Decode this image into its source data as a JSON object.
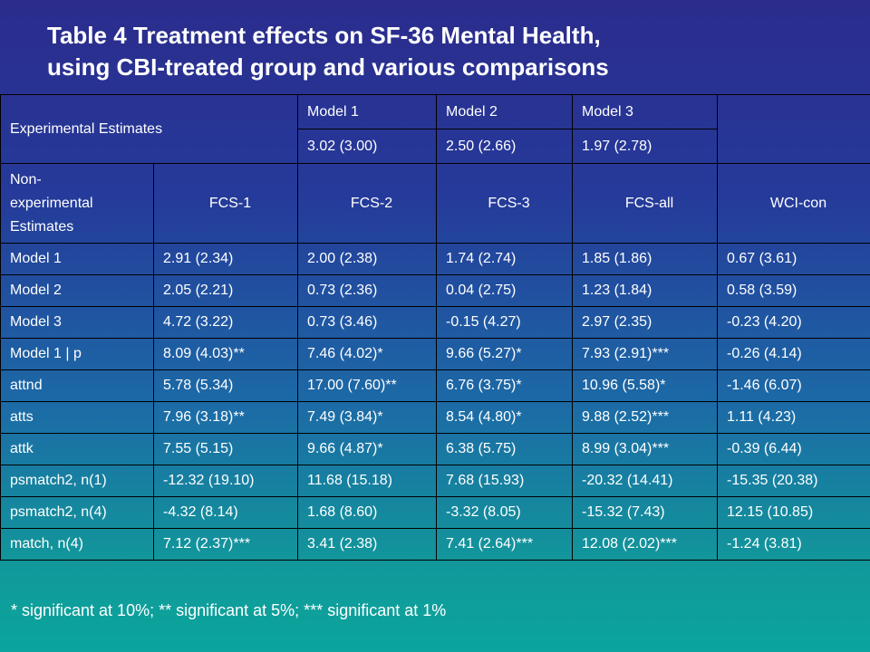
{
  "title": {
    "line1": "Table 4 Treatment effects on SF-36 Mental Health,",
    "line2": "using CBI-treated group and various comparisons"
  },
  "experimental": {
    "label": "Experimental Estimates",
    "models": [
      "Model 1",
      "Model 2",
      "Model 3"
    ],
    "values": [
      "3.02 (3.00)",
      "2.50 (2.66)",
      "1.97 (2.78)"
    ]
  },
  "nonexperimental": {
    "label_line1": "Non-",
    "label_line2": "experimental",
    "label_line3": "Estimates",
    "columns": [
      "FCS-1",
      "FCS-2",
      "FCS-3",
      "FCS-all",
      "WCI-con"
    ]
  },
  "rows": [
    {
      "label": "Model 1",
      "cells": [
        "2.91 (2.34)",
        "2.00 (2.38)",
        "1.74 (2.74)",
        "1.85 (1.86)",
        "0.67 (3.61)"
      ]
    },
    {
      "label": "Model 2",
      "cells": [
        "2.05 (2.21)",
        "0.73 (2.36)",
        "0.04 (2.75)",
        "1.23 (1.84)",
        "0.58 (3.59)"
      ]
    },
    {
      "label": "Model 3",
      "cells": [
        "4.72 (3.22)",
        "0.73 (3.46)",
        "-0.15 (4.27)",
        "2.97 (2.35)",
        "-0.23 (4.20)"
      ]
    },
    {
      "label": "Model 1 | p",
      "cells": [
        "8.09 (4.03)**",
        "7.46 (4.02)*",
        "9.66 (5.27)*",
        "7.93 (2.91)***",
        "-0.26 (4.14)"
      ]
    },
    {
      "label": "attnd",
      "cells": [
        "5.78 (5.34)",
        "17.00 (7.60)**",
        "6.76 (3.75)*",
        "10.96 (5.58)*",
        "-1.46 (6.07)"
      ]
    },
    {
      "label": "atts",
      "cells": [
        "7.96 (3.18)**",
        "7.49 (3.84)*",
        "8.54 (4.80)*",
        "9.88 (2.52)***",
        "1.11 (4.23)"
      ]
    },
    {
      "label": "attk",
      "cells": [
        "7.55 (5.15)",
        "9.66 (4.87)*",
        "6.38 (5.75)",
        "8.99 (3.04)***",
        "-0.39 (6.44)"
      ]
    },
    {
      "label": "psmatch2, n(1)",
      "cells": [
        "-12.32 (19.10)",
        "11.68 (15.18)",
        "7.68 (15.93)",
        "-20.32 (14.41)",
        "-15.35 (20.38)"
      ]
    },
    {
      "label": "psmatch2, n(4)",
      "cells": [
        "-4.32 (8.14)",
        "1.68 (8.60)",
        "-3.32 (8.05)",
        "-15.32 (7.43)",
        "12.15 (10.85)"
      ]
    },
    {
      "label": "match, n(4)",
      "cells": [
        "7.12 (2.37)***",
        "3.41 (2.38)",
        "7.41 (2.64)***",
        "12.08 (2.02)***",
        "-1.24 (3.81)"
      ]
    }
  ],
  "footnote": "* significant at 10%; ** significant at 5%; *** significant at 1%"
}
